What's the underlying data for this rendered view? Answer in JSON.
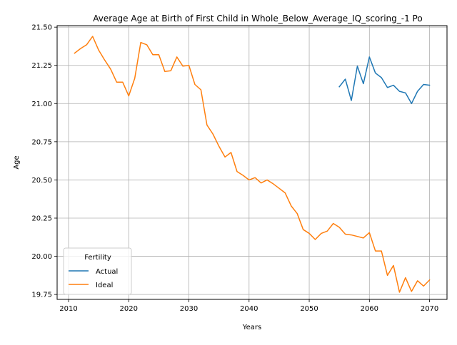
{
  "chart_data": {
    "type": "line",
    "title": "Average Age at Birth of First Child in Whole_Below_Average_IQ_scoring_-1 Po",
    "xlabel": "Years",
    "ylabel": "Age",
    "xlim": [
      2008.1,
      2072.9
    ],
    "ylim": [
      19.718,
      21.51
    ],
    "grid": true,
    "x_ticks": [
      2010,
      2020,
      2030,
      2040,
      2050,
      2060,
      2070
    ],
    "x_tick_labels": [
      "2010",
      "2020",
      "2030",
      "2040",
      "2050",
      "2060",
      "2070"
    ],
    "y_ticks": [
      19.75,
      20.0,
      20.25,
      20.5,
      20.75,
      21.0,
      21.25,
      21.5
    ],
    "y_tick_labels": [
      "19.75",
      "20.00",
      "20.25",
      "20.50",
      "20.75",
      "21.00",
      "21.25",
      "21.50"
    ],
    "legend": {
      "title": "Fertility",
      "placement": "lower-left"
    },
    "series": [
      {
        "name": "Actual",
        "color": "#1f77b4",
        "x": [
          2055,
          2056,
          2057,
          2058,
          2059,
          2060,
          2061,
          2062,
          2063,
          2064,
          2065,
          2066,
          2067,
          2068,
          2069,
          2070
        ],
        "y": [
          21.11,
          21.16,
          21.02,
          21.245,
          21.13,
          21.305,
          21.2,
          21.17,
          21.105,
          21.12,
          21.08,
          21.07,
          21.0,
          21.08,
          21.125,
          21.12
        ]
      },
      {
        "name": "Ideal",
        "color": "#ff7f0e",
        "x": [
          2011,
          2012,
          2013,
          2014,
          2015,
          2016,
          2017,
          2018,
          2019,
          2020,
          2021,
          2022,
          2023,
          2024,
          2025,
          2026,
          2027,
          2028,
          2029,
          2030,
          2031,
          2032,
          2033,
          2034,
          2035,
          2036,
          2037,
          2038,
          2039,
          2040,
          2041,
          2042,
          2043,
          2044,
          2045,
          2046,
          2047,
          2048,
          2049,
          2050,
          2051,
          2052,
          2053,
          2054,
          2055,
          2056,
          2057,
          2058,
          2059,
          2060,
          2061,
          2062,
          2063,
          2064,
          2065,
          2066,
          2067,
          2068,
          2069,
          2070
        ],
        "y": [
          21.33,
          21.36,
          21.385,
          21.44,
          21.35,
          21.285,
          21.225,
          21.14,
          21.14,
          21.05,
          21.165,
          21.4,
          21.385,
          21.32,
          21.32,
          21.21,
          21.215,
          21.305,
          21.245,
          21.25,
          21.125,
          21.09,
          20.86,
          20.8,
          20.72,
          20.65,
          20.68,
          20.555,
          20.53,
          20.5,
          20.515,
          20.48,
          20.5,
          20.475,
          20.445,
          20.415,
          20.33,
          20.28,
          20.175,
          20.15,
          20.11,
          20.15,
          20.165,
          20.215,
          20.19,
          20.145,
          20.14,
          20.13,
          20.12,
          20.155,
          20.035,
          20.035,
          19.875,
          19.94,
          19.765,
          19.86,
          19.77,
          19.84,
          19.805,
          19.845
        ]
      }
    ]
  }
}
